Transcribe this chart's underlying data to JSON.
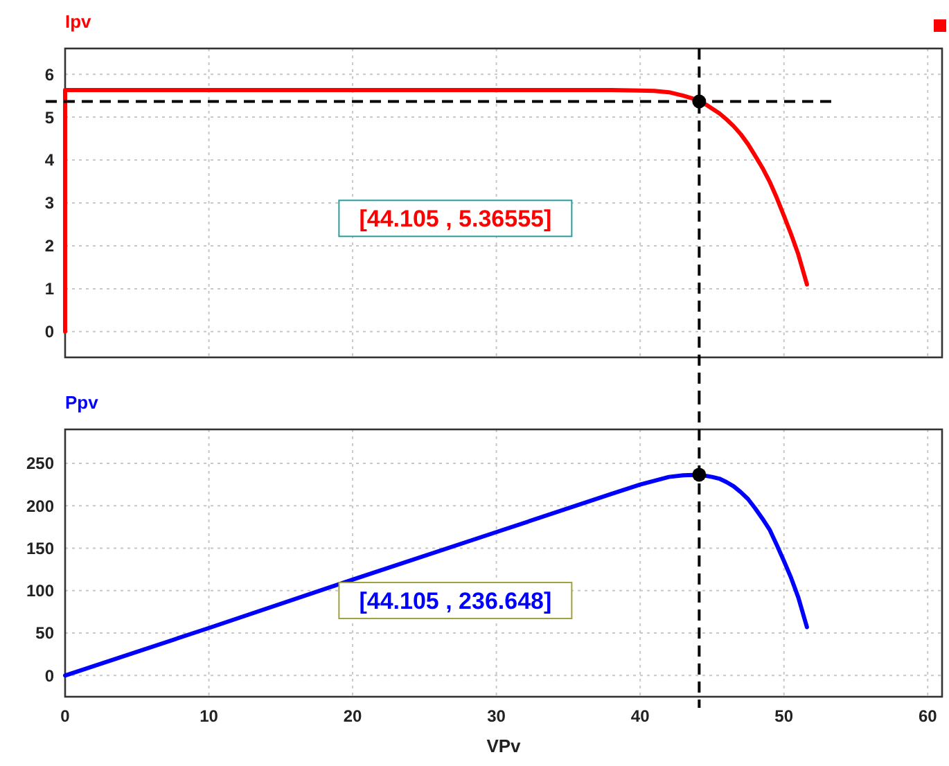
{
  "chart_data": [
    {
      "type": "line",
      "ylabel": "Ipv",
      "xlim": [
        0,
        61
      ],
      "xticks": [
        0,
        10,
        20,
        30,
        40,
        50,
        60
      ],
      "ylim": [
        -0.6,
        6.6
      ],
      "yticks": [
        0,
        1,
        2,
        3,
        4,
        5,
        6
      ],
      "grid": true,
      "tick_labels": "y",
      "line_style": "solid",
      "series": [
        {
          "color": "#ff0000",
          "marker": "none",
          "x": [
            0,
            0,
            10,
            20,
            30,
            38,
            40,
            41,
            42,
            43,
            43.6,
            44.105,
            44.6,
            45,
            45.5,
            46,
            46.5,
            47,
            47.5,
            48,
            48.5,
            49,
            49.5,
            50,
            50.5,
            51,
            51.6
          ],
          "values": [
            0,
            5.63,
            5.63,
            5.63,
            5.63,
            5.63,
            5.62,
            5.61,
            5.58,
            5.5,
            5.44,
            5.36555,
            5.29,
            5.2,
            5.09,
            4.95,
            4.79,
            4.6,
            4.37,
            4.1,
            3.82,
            3.5,
            3.12,
            2.7,
            2.27,
            1.8,
            1.1
          ]
        },
        {
          "type": "scatter",
          "marker": "circle",
          "color": "#000000",
          "x": [
            44.105
          ],
          "values": [
            5.36555
          ]
        }
      ],
      "ref_lines": [
        {
          "axis": "x",
          "value": 44.105,
          "color": "#000000",
          "line_style": "dashed"
        },
        {
          "axis": "y",
          "value": 5.36555,
          "color": "#000000",
          "line_style": "dashed"
        }
      ],
      "annotations": [
        "[44.105 , 5.36555]"
      ]
    },
    {
      "type": "line",
      "ylabel": "Ppv",
      "xlabel": "VPv",
      "xlim": [
        0,
        61
      ],
      "xticks": [
        0,
        10,
        20,
        30,
        40,
        50,
        60
      ],
      "ylim": [
        -25,
        290
      ],
      "yticks": [
        0,
        50,
        100,
        150,
        200,
        250
      ],
      "grid": true,
      "line_style": "solid",
      "series": [
        {
          "color": "#0000ff",
          "marker": "none",
          "x": [
            0,
            10,
            20,
            30,
            38,
            40,
            42,
            43,
            44.105,
            45,
            45.5,
            46,
            46.5,
            47,
            47.5,
            48,
            48.5,
            49,
            49.5,
            50,
            50.5,
            51,
            51.6
          ],
          "values": [
            0,
            56,
            113,
            169,
            214,
            225,
            234,
            236,
            236.648,
            234,
            232,
            228,
            223,
            216,
            208,
            197,
            185,
            172,
            154,
            135,
            115,
            92,
            57
          ]
        },
        {
          "type": "scatter",
          "marker": "circle",
          "color": "#000000",
          "x": [
            44.105
          ],
          "values": [
            236.648
          ]
        }
      ],
      "ref_lines": [
        {
          "axis": "x",
          "value": 44.105,
          "color": "#000000",
          "line_style": "dashed"
        }
      ],
      "annotations": [
        "[44.105 , 236.648]"
      ]
    }
  ]
}
